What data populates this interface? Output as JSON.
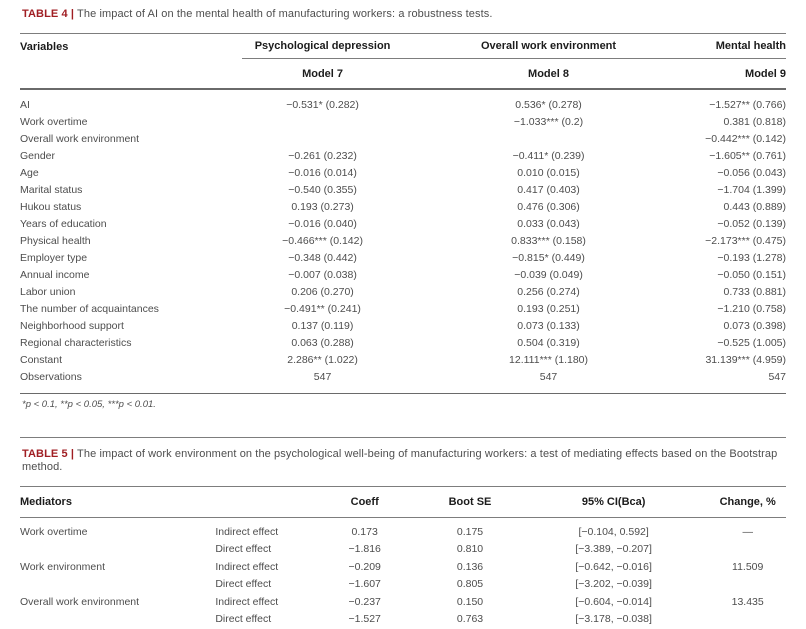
{
  "colors": {
    "accent_red": "#a01e23",
    "text_gray": "#4d4d4d",
    "header_black": "#1c1c1c",
    "rule_gray": "#7d7d7d"
  },
  "table4": {
    "label": "TABLE 4 |",
    "caption": "The impact of AI on the mental health of manufacturing workers: a robustness tests.",
    "col_headers": {
      "variables": "Variables",
      "groups": [
        "Psychological depression",
        "Overall work environment",
        "Mental health"
      ],
      "models": [
        "Model 7",
        "Model 8",
        "Model 9"
      ]
    },
    "rows": [
      {
        "label": "AI",
        "m7": "−0.531* (0.282)",
        "m8": "0.536* (0.278)",
        "m9": "−1.527** (0.766)"
      },
      {
        "label": "Work overtime",
        "m7": "",
        "m8": "−1.033*** (0.2)",
        "m9": "0.381 (0.818)"
      },
      {
        "label": "Overall work environment",
        "m7": "",
        "m8": "",
        "m9": "−0.442*** (0.142)"
      },
      {
        "label": "Gender",
        "m7": "−0.261 (0.232)",
        "m8": "−0.411* (0.239)",
        "m9": "−1.605** (0.761)"
      },
      {
        "label": "Age",
        "m7": "−0.016 (0.014)",
        "m8": "0.010 (0.015)",
        "m9": "−0.056 (0.043)"
      },
      {
        "label": "Marital status",
        "m7": "−0.540 (0.355)",
        "m8": "0.417 (0.403)",
        "m9": "−1.704 (1.399)"
      },
      {
        "label": "Hukou status",
        "m7": "0.193 (0.273)",
        "m8": "0.476 (0.306)",
        "m9": "0.443 (0.889)"
      },
      {
        "label": "Years of education",
        "m7": "−0.016 (0.040)",
        "m8": "0.033 (0.043)",
        "m9": "−0.052 (0.139)"
      },
      {
        "label": "Physical health",
        "m7": "−0.466*** (0.142)",
        "m8": "0.833*** (0.158)",
        "m9": "−2.173*** (0.475)"
      },
      {
        "label": "Employer type",
        "m7": "−0.348 (0.442)",
        "m8": "−0.815* (0.449)",
        "m9": "−0.193 (1.278)"
      },
      {
        "label": "Annual income",
        "m7": "−0.007 (0.038)",
        "m8": "−0.039 (0.049)",
        "m9": "−0.050 (0.151)"
      },
      {
        "label": "Labor union",
        "m7": "0.206 (0.270)",
        "m8": "0.256 (0.274)",
        "m9": "0.733 (0.881)"
      },
      {
        "label": "The number of acquaintances",
        "m7": "−0.491** (0.241)",
        "m8": "0.193 (0.251)",
        "m9": "−1.210 (0.758)"
      },
      {
        "label": "Neighborhood support",
        "m7": "0.137 (0.119)",
        "m8": "0.073 (0.133)",
        "m9": "0.073 (0.398)"
      },
      {
        "label": "Regional characteristics",
        "m7": "0.063 (0.288)",
        "m8": "0.504 (0.319)",
        "m9": "−0.525 (1.005)"
      },
      {
        "label": "Constant",
        "m7": "2.286** (1.022)",
        "m8": "12.111*** (1.180)",
        "m9": "31.139*** (4.959)"
      },
      {
        "label": "Observations",
        "m7": "547",
        "m8": "547",
        "m9": "547"
      }
    ],
    "footnote": "*p < 0.1, **p < 0.05, ***p < 0.01."
  },
  "table5": {
    "label": "TABLE 5 |",
    "caption": "The impact of work environment on the psychological well-being of manufacturing workers: a test of mediating effects based on the Bootstrap method.",
    "col_headers": {
      "mediators": "Mediators",
      "effect": "",
      "coeff": "Coeff",
      "boot_se": "Boot SE",
      "ci": "95% CI(Bca)",
      "change": "Change, %"
    },
    "rows": [
      {
        "mediator": "Work overtime",
        "effect": "Indirect effect",
        "coeff": "0.173",
        "boot_se": "0.175",
        "ci": "[−0.104, 0.592]",
        "change": "—"
      },
      {
        "mediator": "",
        "effect": "Direct effect",
        "coeff": "−1.816",
        "boot_se": "0.810",
        "ci": "[−3.389, −0.207]",
        "change": ""
      },
      {
        "mediator": "Work environment",
        "effect": "Indirect effect",
        "coeff": "−0.209",
        "boot_se": "0.136",
        "ci": "[−0.642, −0.016]",
        "change": "11.509"
      },
      {
        "mediator": "",
        "effect": "Direct effect",
        "coeff": "−1.607",
        "boot_se": "0.805",
        "ci": "[−3.202, −0.039]",
        "change": ""
      },
      {
        "mediator": "Overall work environment",
        "effect": "Indirect effect",
        "coeff": "−0.237",
        "boot_se": "0.150",
        "ci": "[−0.604, −0.014]",
        "change": "13.435"
      },
      {
        "mediator": "",
        "effect": "Direct effect",
        "coeff": "−1.527",
        "boot_se": "0.763",
        "ci": "[−3.178, −0.038]",
        "change": ""
      }
    ]
  }
}
